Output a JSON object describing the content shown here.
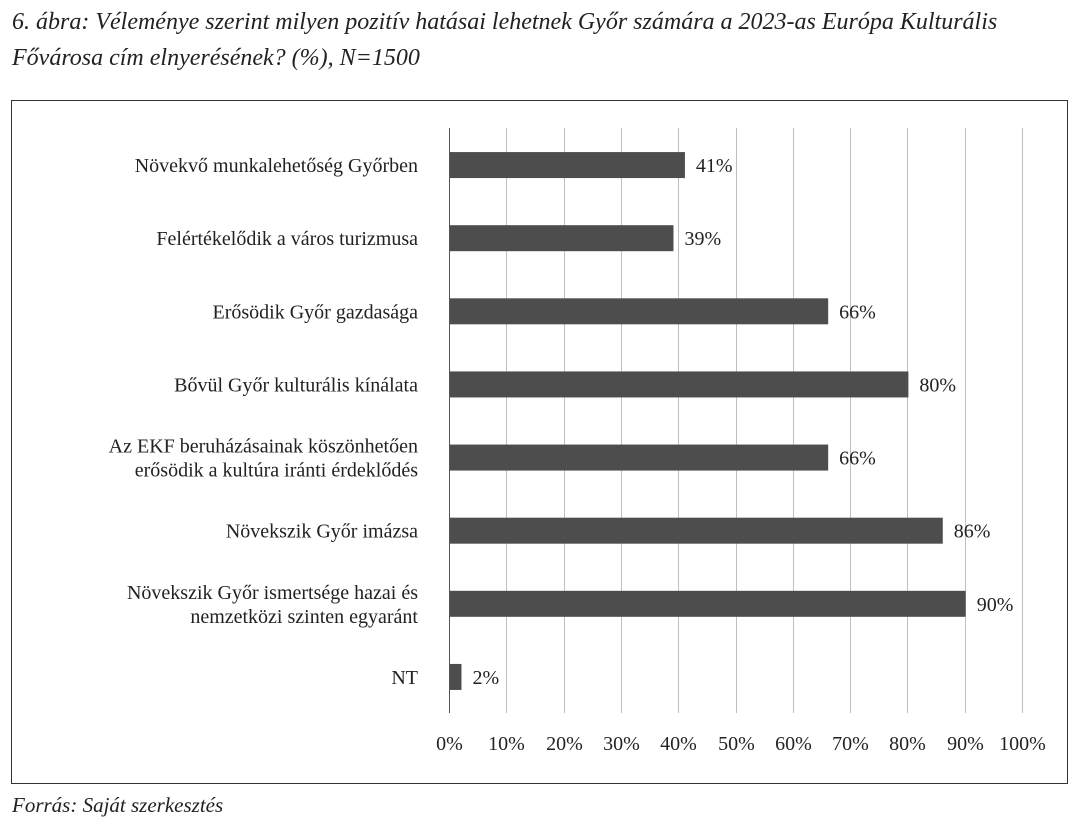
{
  "chart_data": {
    "type": "bar",
    "orientation": "horizontal",
    "title": "6. ábra: Véleménye szerint milyen pozitív hatásai lehetnek Győr számára a 2023-as Európa Kulturális Fővárosa cím elnyerésének? (%), N=1500",
    "source": "Forrás: Saját szerkesztés",
    "categories": [
      [
        "Növekvő munkalehetőség Győrben"
      ],
      [
        "Felértékelődik a város turizmusa"
      ],
      [
        "Erősödik Győr gazdasága"
      ],
      [
        "Bővül Győr kulturális kínálata"
      ],
      [
        "Az EKF beruházásainak köszönhetően",
        "erősödik a kultúra iránti érdeklődés"
      ],
      [
        "Növekszik Győr imázsa"
      ],
      [
        "Növekszik Győr ismertsége hazai és",
        "nemzetközi szinten egyaránt"
      ],
      [
        "NT"
      ]
    ],
    "values": [
      41,
      39,
      66,
      80,
      66,
      86,
      90,
      2
    ],
    "data_labels": [
      "41%",
      "39%",
      "66%",
      "80%",
      "66%",
      "86%",
      "90%",
      "2%"
    ],
    "xlim": [
      0,
      100
    ],
    "x_ticks": [
      "0%",
      "10%",
      "20%",
      "30%",
      "40%",
      "50%",
      "60%",
      "70%",
      "80%",
      "90%",
      "100%"
    ],
    "grid": "vertical",
    "legend": "none",
    "bar_color": "#4d4d4d",
    "grid_color": "#bfbfbf"
  }
}
